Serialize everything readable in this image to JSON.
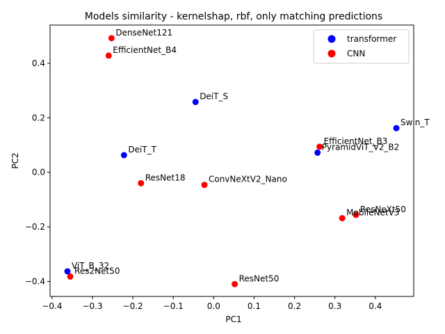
{
  "chart_data": {
    "type": "scatter",
    "title": "Models similarity - kernelshap, rbf, only matching predictions",
    "xlabel": "PC1",
    "ylabel": "PC2",
    "xlim": [
      -0.405,
      0.495
    ],
    "ylim": [
      -0.455,
      0.54
    ],
    "xticks": [
      -0.4,
      -0.3,
      -0.2,
      -0.1,
      0.0,
      0.1,
      0.2,
      0.3,
      0.4
    ],
    "xtick_labels": [
      "−0.4",
      "−0.3",
      "−0.2",
      "−0.1",
      "0.0",
      "0.1",
      "0.2",
      "0.3",
      "0.4"
    ],
    "yticks": [
      -0.4,
      -0.2,
      0.0,
      0.2,
      0.4
    ],
    "ytick_labels": [
      "−0.4",
      "−0.2",
      "0.0",
      "0.2",
      "0.4"
    ],
    "grid": false,
    "legend_position": "top-right",
    "series": [
      {
        "name": "transformer",
        "color": "#0000ff",
        "points": [
          {
            "label": "DeiT_S",
            "x": -0.045,
            "y": 0.258
          },
          {
            "label": "Swin_T",
            "x": 0.452,
            "y": 0.162
          },
          {
            "label": "DeiT_T",
            "x": -0.222,
            "y": 0.063
          },
          {
            "label": "PyramidViT_V2_B2",
            "x": 0.257,
            "y": 0.072
          },
          {
            "label": "ViT_B_32",
            "x": -0.362,
            "y": -0.363
          }
        ]
      },
      {
        "name": "CNN",
        "color": "#ff0000",
        "points": [
          {
            "label": "DenseNet121",
            "x": -0.253,
            "y": 0.492
          },
          {
            "label": "EfficientNet_B4",
            "x": -0.26,
            "y": 0.428
          },
          {
            "label": "EfficientNet_B3",
            "x": 0.262,
            "y": 0.094
          },
          {
            "label": "ResNet18",
            "x": -0.18,
            "y": -0.04
          },
          {
            "label": "ConvNeXtV2_Nano",
            "x": -0.023,
            "y": -0.046
          },
          {
            "label": "ResNeXt50",
            "x": 0.352,
            "y": -0.156
          },
          {
            "label": "MobileNetV3",
            "x": 0.318,
            "y": -0.168
          },
          {
            "label": "Res2Net50",
            "x": -0.355,
            "y": -0.382
          },
          {
            "label": "ResNet50",
            "x": 0.052,
            "y": -0.41
          }
        ]
      }
    ]
  }
}
